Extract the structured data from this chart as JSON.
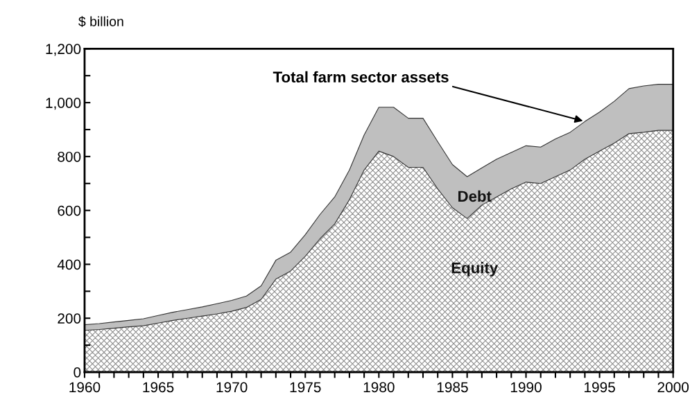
{
  "chart_data": {
    "type": "area",
    "stacked": true,
    "ylabel": "$ billion",
    "x": [
      1960,
      1961,
      1962,
      1963,
      1964,
      1965,
      1966,
      1967,
      1968,
      1969,
      1970,
      1971,
      1972,
      1973,
      1974,
      1975,
      1976,
      1977,
      1978,
      1979,
      1980,
      1981,
      1982,
      1983,
      1984,
      1985,
      1986,
      1987,
      1988,
      1989,
      1990,
      1991,
      1992,
      1993,
      1994,
      1995,
      1996,
      1997,
      1998,
      1999,
      2000
    ],
    "series": [
      {
        "name": "Equity",
        "color": "#8c8c8c",
        "values": [
          155,
          158,
          163,
          168,
          172,
          182,
          192,
          200,
          208,
          216,
          226,
          240,
          270,
          345,
          375,
          430,
          495,
          550,
          640,
          750,
          820,
          800,
          760,
          760,
          680,
          610,
          570,
          620,
          650,
          680,
          705,
          700,
          725,
          750,
          790,
          820,
          850,
          885,
          890,
          897,
          897
        ]
      },
      {
        "name": "Debt",
        "color": "#bfbfbf",
        "values": [
          21,
          22,
          23,
          24,
          26,
          28,
          30,
          32,
          34,
          38,
          40,
          42,
          50,
          70,
          70,
          80,
          90,
          100,
          110,
          130,
          163,
          183,
          182,
          182,
          175,
          160,
          155,
          138,
          140,
          135,
          135,
          135,
          140,
          140,
          140,
          145,
          155,
          167,
          172,
          171,
          171
        ]
      }
    ],
    "annotations": [
      {
        "text": "Total farm sector assets",
        "x": 1994,
        "y": 930
      }
    ],
    "xlim": [
      1960,
      2000
    ],
    "xticks": [
      1960,
      {
        "value": 1961,
        "label": null
      },
      {
        "value": 1962,
        "label": null
      },
      {
        "value": 1963,
        "label": null
      },
      {
        "value": 1964,
        "label": null
      },
      1965,
      {
        "value": 1966,
        "label": null
      },
      {
        "value": 1967,
        "label": null
      },
      {
        "value": 1968,
        "label": null
      },
      {
        "value": 1969,
        "label": null
      },
      1970,
      {
        "value": 1971,
        "label": null
      },
      {
        "value": 1972,
        "label": null
      },
      {
        "value": 1973,
        "label": null
      },
      {
        "value": 1974,
        "label": null
      },
      1975,
      {
        "value": 1976,
        "label": null
      },
      {
        "value": 1977,
        "label": null
      },
      {
        "value": 1978,
        "label": null
      },
      {
        "value": 1979,
        "label": null
      },
      1980,
      {
        "value": 1981,
        "label": null
      },
      {
        "value": 1982,
        "label": null
      },
      {
        "value": 1983,
        "label": null
      },
      {
        "value": 1984,
        "label": null
      },
      1985,
      {
        "value": 1986,
        "label": null
      },
      {
        "value": 1987,
        "label": null
      },
      {
        "value": 1988,
        "label": null
      },
      {
        "value": 1989,
        "label": null
      },
      1990,
      {
        "value": 1991,
        "label": null
      },
      {
        "value": 1992,
        "label": null
      },
      {
        "value": 1993,
        "label": null
      },
      {
        "value": 1994,
        "label": null
      },
      1995,
      {
        "value": 1996,
        "label": null
      },
      {
        "value": 1997,
        "label": null
      },
      {
        "value": 1998,
        "label": null
      },
      {
        "value": 1999,
        "label": null
      },
      2000
    ],
    "ylim": [
      0,
      1200
    ],
    "yticks": [
      0,
      {
        "value": 100,
        "label": null
      },
      200,
      {
        "value": 300,
        "label": null
      },
      400,
      {
        "value": 500,
        "label": null
      },
      600,
      {
        "value": 700,
        "label": null
      },
      800,
      {
        "value": 900,
        "label": null
      },
      {
        "value": 1000,
        "label": "1,000"
      },
      {
        "value": 1100,
        "label": null
      },
      {
        "value": 1200,
        "label": "1,200"
      }
    ],
    "grid": false,
    "legend": false
  }
}
